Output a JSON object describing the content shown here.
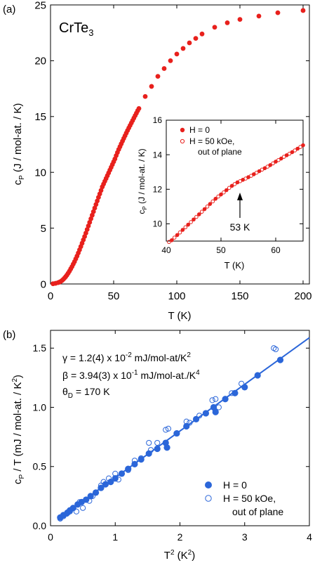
{
  "chart_data": [
    {
      "panel": "(a)",
      "type": "scatter",
      "title": "CrTe",
      "title_sub": "3",
      "xlabel": "T (K)",
      "ylabel_main": "c",
      "ylabel_sub": "P",
      "ylabel_rest": " (J / mol-at. / K)",
      "xlim": [
        0,
        205
      ],
      "ylim": [
        0,
        25
      ],
      "xticks": [
        0,
        50,
        100,
        150,
        200
      ],
      "yticks": [
        0,
        5,
        10,
        15,
        20,
        25
      ],
      "color": "#e8201c",
      "series": [
        {
          "marker": "filled-circle",
          "x": [
            2,
            4,
            6,
            7,
            8,
            9,
            10,
            11,
            12,
            13,
            14,
            15,
            16,
            17,
            18,
            19,
            20,
            21,
            22,
            23,
            24,
            25,
            26,
            27,
            28,
            29,
            30,
            31,
            32,
            33,
            34,
            35,
            36,
            37,
            38,
            39,
            40,
            41,
            42,
            43,
            44,
            45,
            46,
            47,
            48,
            49,
            50,
            51,
            52,
            53,
            54,
            55,
            56,
            57,
            58,
            59,
            60,
            61,
            62,
            63,
            64,
            65,
            66,
            67,
            68,
            69,
            70,
            75,
            80,
            85,
            90,
            95,
            100,
            105,
            110,
            115,
            120,
            130,
            140,
            150,
            165,
            180,
            200
          ],
          "y": [
            0.02,
            0.06,
            0.12,
            0.16,
            0.22,
            0.3,
            0.4,
            0.52,
            0.65,
            0.8,
            0.97,
            1.15,
            1.35,
            1.55,
            1.78,
            2.0,
            2.25,
            2.5,
            2.78,
            3.06,
            3.35,
            3.65,
            3.95,
            4.25,
            4.56,
            4.88,
            5.2,
            5.52,
            5.84,
            6.16,
            6.48,
            6.8,
            7.12,
            7.44,
            7.76,
            8.07,
            8.38,
            8.7,
            8.95,
            9.2,
            9.45,
            9.7,
            9.95,
            10.2,
            10.45,
            10.7,
            10.95,
            11.2,
            11.5,
            11.78,
            12.05,
            12.3,
            12.55,
            12.8,
            13.04,
            13.28,
            13.52,
            13.75,
            13.98,
            14.2,
            14.42,
            14.64,
            14.86,
            15.08,
            15.3,
            15.52,
            15.72,
            16.8,
            17.7,
            18.6,
            19.3,
            20.0,
            20.6,
            21.1,
            21.6,
            22.0,
            22.4,
            23.0,
            23.4,
            23.7,
            24.0,
            24.3,
            24.5
          ]
        }
      ]
    },
    {
      "panel": "(a) inset",
      "type": "scatter",
      "xlabel": "T (K)",
      "ylabel_main": "c",
      "ylabel_sub": "P",
      "ylabel_rest": " (J / mol-at. / K)",
      "xlim": [
        40,
        65
      ],
      "ylim": [
        9,
        16
      ],
      "xticks": [
        40,
        50,
        60
      ],
      "yticks": [
        10,
        12,
        14,
        16
      ],
      "color": "#e8201c",
      "annotation": "53 K",
      "annotation_x": 53,
      "legend": [
        "H = 0",
        "H  = 50 kOe,",
        "out of plane"
      ],
      "series": [
        {
          "name": "H = 0",
          "marker": "filled-circle",
          "x": [
            41,
            42,
            43,
            44,
            45,
            46,
            47,
            48,
            49,
            50,
            51,
            52,
            53,
            54,
            55,
            56,
            57,
            58,
            59,
            60,
            61,
            62,
            63,
            64,
            65
          ],
          "y": [
            9.05,
            9.35,
            9.65,
            9.95,
            10.25,
            10.55,
            10.85,
            11.15,
            11.45,
            11.7,
            11.95,
            12.2,
            12.4,
            12.55,
            12.7,
            12.87,
            13.05,
            13.22,
            13.4,
            13.6,
            13.78,
            13.97,
            14.15,
            14.35,
            14.55
          ]
        },
        {
          "name": "H  = 50 kOe, out of plane",
          "marker": "open-circle",
          "x": [
            40.5,
            41,
            41.5,
            42,
            42.5,
            43,
            43.5,
            44,
            44.5,
            45,
            45.5,
            46,
            46.5,
            47,
            47.5,
            48,
            48.5,
            49,
            49.5,
            50,
            50.5,
            51,
            51.5,
            52,
            52.5,
            53,
            53.5,
            54,
            54.5,
            55,
            55.5,
            56,
            56.5,
            57,
            57.5,
            58,
            58.5,
            59,
            59.5,
            60,
            60.5,
            61,
            61.5,
            62,
            62.5,
            63,
            63.5,
            64,
            64.5,
            65
          ],
          "y": [
            8.95,
            9.05,
            9.2,
            9.35,
            9.5,
            9.65,
            9.8,
            9.95,
            10.1,
            10.25,
            10.4,
            10.55,
            10.7,
            10.85,
            11.0,
            11.15,
            11.3,
            11.45,
            11.58,
            11.7,
            11.82,
            11.95,
            12.08,
            12.2,
            12.3,
            12.4,
            12.47,
            12.55,
            12.62,
            12.7,
            12.78,
            12.87,
            12.96,
            13.05,
            13.14,
            13.22,
            13.31,
            13.4,
            13.5,
            13.6,
            13.69,
            13.78,
            13.88,
            13.97,
            14.06,
            14.15,
            14.25,
            14.35,
            14.45,
            14.55
          ]
        }
      ]
    },
    {
      "panel": "(b)",
      "type": "scatter",
      "xlabel_main": "T",
      "xlabel_sup": "2",
      "xlabel_unit": " (K",
      "xlabel_unit_sup": "2",
      "xlabel_close": ")",
      "ylabel_main": "c",
      "ylabel_sub": "P",
      "ylabel_rest": " / T (mJ / mol-at. / K",
      "ylabel_sup": "2",
      "ylabel_close": ")",
      "xlim": [
        0,
        4
      ],
      "ylim": [
        0,
        1.65
      ],
      "xticks": [
        0,
        1,
        2,
        3,
        4
      ],
      "yticks": [
        0.0,
        0.5,
        1.0,
        1.5
      ],
      "color": "#2b66d9",
      "fit_line": {
        "intercept": 0.012,
        "slope": 0.394
      },
      "annotations": {
        "gamma": {
          "prefix": "γ = 1.2(4) x 10",
          "sup": "-2",
          "mid": " mJ/mol-at/K",
          "sup2": "2"
        },
        "beta": {
          "prefix": "β = 3.94(3) x 10",
          "sup": "-1",
          "mid": " mJ/mol-at./K",
          "sup2": "4"
        },
        "theta": {
          "prefix": "θ",
          "sub": "D",
          "rest": " = 170 K"
        }
      },
      "legend": [
        "H = 0",
        "H = 50 kOe,",
        "out of plane"
      ],
      "series": [
        {
          "name": "H = 0",
          "marker": "filled-circle",
          "x": [
            0.15,
            0.2,
            0.26,
            0.3,
            0.35,
            0.42,
            0.48,
            0.55,
            0.62,
            0.7,
            0.78,
            0.85,
            0.93,
            1.0,
            1.1,
            1.2,
            1.3,
            1.4,
            1.52,
            1.65,
            1.78,
            1.8,
            1.95,
            2.1,
            2.25,
            2.4,
            2.52,
            2.55,
            2.7,
            2.85,
            3.0,
            3.2,
            3.55
          ],
          "y": [
            0.07,
            0.09,
            0.11,
            0.13,
            0.15,
            0.18,
            0.2,
            0.22,
            0.25,
            0.28,
            0.32,
            0.35,
            0.37,
            0.4,
            0.44,
            0.48,
            0.52,
            0.56,
            0.61,
            0.65,
            0.7,
            0.66,
            0.78,
            0.84,
            0.9,
            0.95,
            1.0,
            0.96,
            1.07,
            1.12,
            1.17,
            1.27,
            1.4
          ]
        },
        {
          "name": "H = 50 kOe, out of plane",
          "marker": "open-circle",
          "x": [
            0.15,
            0.2,
            0.25,
            0.3,
            0.35,
            0.4,
            0.45,
            0.5,
            0.55,
            0.6,
            0.65,
            0.7,
            0.78,
            0.82,
            0.9,
            1.0,
            1.05,
            1.2,
            1.3,
            1.4,
            1.52,
            1.55,
            1.65,
            1.78,
            1.82,
            1.95,
            2.1,
            2.15,
            2.3,
            2.5,
            2.55,
            2.6,
            2.8,
            2.95,
            3.45,
            3.48
          ],
          "y": [
            0.06,
            0.08,
            0.1,
            0.12,
            0.15,
            0.12,
            0.2,
            0.15,
            0.22,
            0.21,
            0.25,
            0.28,
            0.34,
            0.37,
            0.4,
            0.44,
            0.39,
            0.47,
            0.55,
            0.57,
            0.7,
            0.64,
            0.7,
            0.81,
            0.82,
            0.78,
            0.88,
            0.87,
            0.93,
            1.06,
            1.07,
            1.0,
            1.12,
            1.2,
            1.5,
            1.49
          ]
        }
      ]
    }
  ]
}
